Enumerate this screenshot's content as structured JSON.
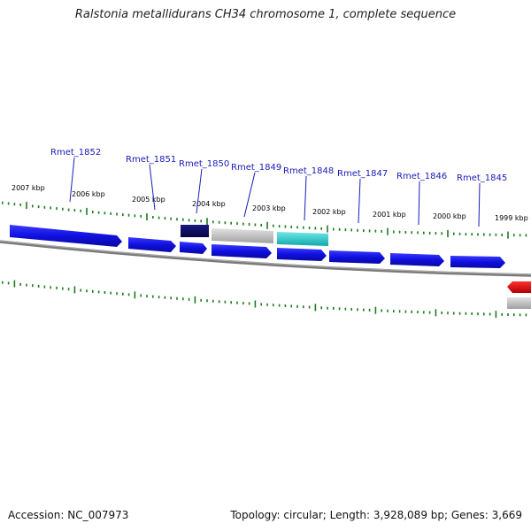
{
  "title": "Ralstonia metallidurans CH34 chromosome 1, complete sequence",
  "footer": {
    "accession": "Accession: NC_007973",
    "topology": "Topology: circular; Length: 3,928,089 bp; Genes: 3,669"
  },
  "colors": {
    "gene_forward": "#1010e0",
    "gene_selected": "#0a0a66",
    "gene_pseudo": "#b8b8b8",
    "gene_rna": "#20c8c8",
    "gene_reverse": "#e01010",
    "backbone": "#8a8a8a",
    "ticks": "#1e7a1e",
    "label": "#1a1ab8"
  },
  "kbp_labels": [
    "2007 kbp",
    "2006 kbp",
    "2005 kbp",
    "2004 kbp",
    "2003 kbp",
    "2002 kbp",
    "2001 kbp",
    "2000 kbp",
    "1999 kbp"
  ],
  "genes": [
    {
      "name": "Rmet_1852",
      "type": "cds"
    },
    {
      "name": "Rmet_1851",
      "type": "cds"
    },
    {
      "name": "Rmet_1850",
      "type": "cds-selected"
    },
    {
      "name": "Rmet_1849",
      "type": "pseudo"
    },
    {
      "name": "Rmet_1848",
      "type": "rna"
    },
    {
      "name": "Rmet_1847",
      "type": "cds"
    },
    {
      "name": "Rmet_1846",
      "type": "cds"
    },
    {
      "name": "Rmet_1845",
      "type": "cds"
    }
  ]
}
